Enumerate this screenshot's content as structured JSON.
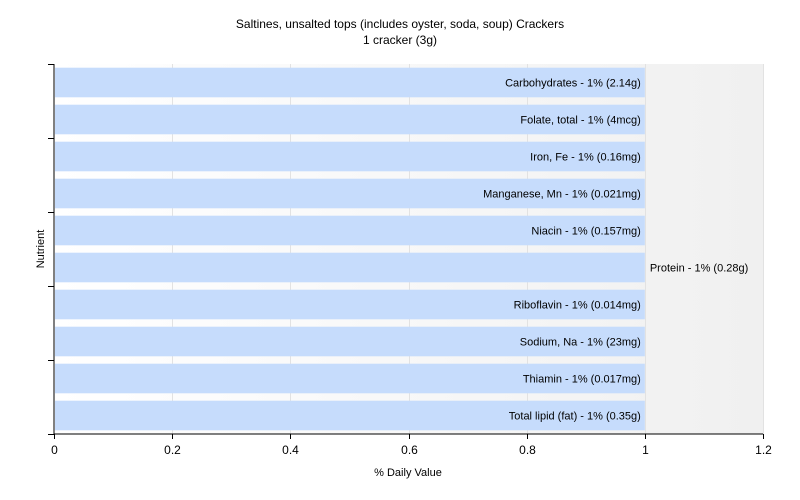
{
  "chart_data": {
    "type": "bar",
    "orientation": "horizontal",
    "title": "Saltines, unsalted tops (includes oyster, soda, soup) Crackers",
    "subtitle": "1 cracker (3g)",
    "xlabel": "% Daily Value",
    "ylabel": "Nutrient",
    "xlim": [
      0,
      1.2
    ],
    "xticks": [
      "0",
      "0.2",
      "0.4",
      "0.6",
      "0.8",
      "1",
      "1.2"
    ],
    "grid": true,
    "bar_color": "#c6dcfc",
    "categories": [
      "Carbohydrates",
      "Folate, total",
      "Iron, Fe",
      "Manganese, Mn",
      "Niacin",
      "Protein",
      "Riboflavin",
      "Sodium, Na",
      "Thiamin",
      "Total lipid (fat)"
    ],
    "values": [
      1,
      1,
      1,
      1,
      1,
      1,
      1,
      1,
      1,
      1
    ],
    "bar_labels": [
      "Carbohydrates - 1% (2.14g)",
      "Folate, total - 1% (4mcg)",
      "Iron, Fe - 1% (0.16mg)",
      "Manganese, Mn - 1% (0.021mg)",
      "Niacin - 1% (0.157mg)",
      "Protein - 1% (0.28g)",
      "Riboflavin - 1% (0.014mg)",
      "Sodium, Na - 1% (23mg)",
      "Thiamin - 1% (0.017mg)",
      "Total lipid (fat) - 1% (0.35g)"
    ],
    "label_outside": [
      false,
      false,
      false,
      false,
      false,
      true,
      false,
      false,
      false,
      false
    ]
  }
}
